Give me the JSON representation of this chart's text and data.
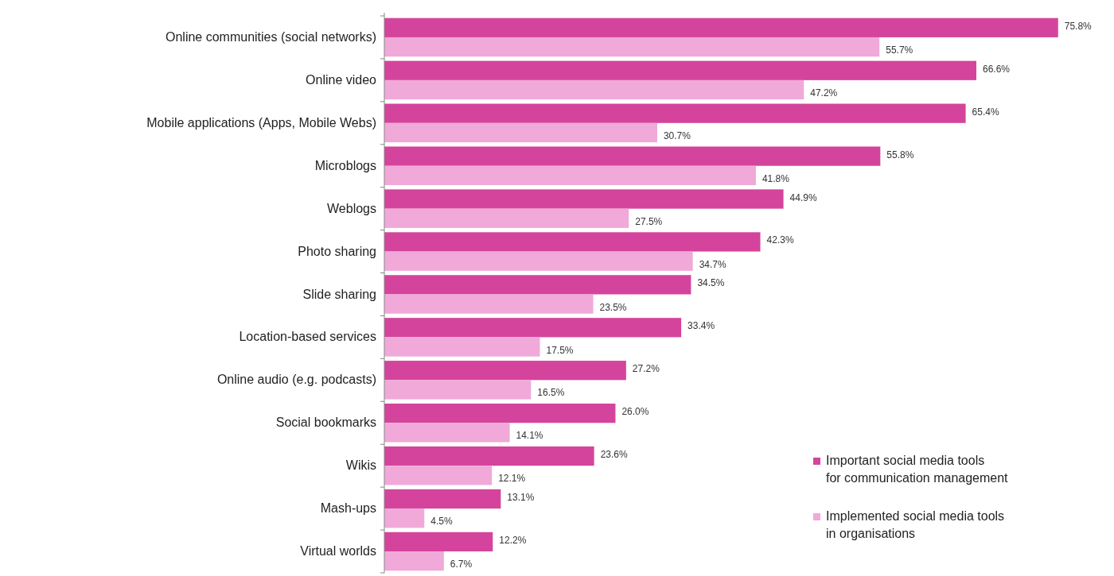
{
  "chart_data": {
    "type": "bar",
    "orientation": "horizontal",
    "categories": [
      "Online communities (social networks)",
      "Online video",
      "Mobile applications (Apps, Mobile Webs)",
      "Microblogs",
      "Weblogs",
      "Photo sharing",
      "Slide sharing",
      "Location-based services",
      "Online audio (e.g. podcasts)",
      "Social bookmarks",
      "Wikis",
      "Mash-ups",
      "Virtual worlds"
    ],
    "series": [
      {
        "name": "Important social media tools for communication management",
        "color": "#d4449c",
        "values": [
          75.8,
          66.6,
          65.4,
          55.8,
          44.9,
          42.3,
          34.5,
          33.4,
          27.2,
          26.0,
          23.6,
          13.1,
          12.2
        ],
        "value_labels": [
          "75.8%",
          "66.6%",
          "65.4%",
          "55.8%",
          "44.9%",
          "42.3%",
          "34.5%",
          "33.4%",
          "27.2%",
          "26.0%",
          "23.6%",
          "13.1%",
          "12.2%"
        ]
      },
      {
        "name": "Implemented social media tools in organisations",
        "color": "#f0a9d8",
        "values": [
          55.7,
          47.2,
          30.7,
          41.8,
          27.5,
          34.7,
          23.5,
          17.5,
          16.5,
          14.1,
          12.1,
          4.5,
          6.7
        ],
        "value_labels": [
          "55.7%",
          "47.2%",
          "30.7%",
          "41.8%",
          "27.5%",
          "34.7%",
          "23.5%",
          "17.5%",
          "16.5%",
          "14.1%",
          "12.1%",
          "4.5%",
          "6.7%"
        ]
      }
    ],
    "xlim": [
      0,
      76
    ],
    "legend": "bottom right"
  }
}
